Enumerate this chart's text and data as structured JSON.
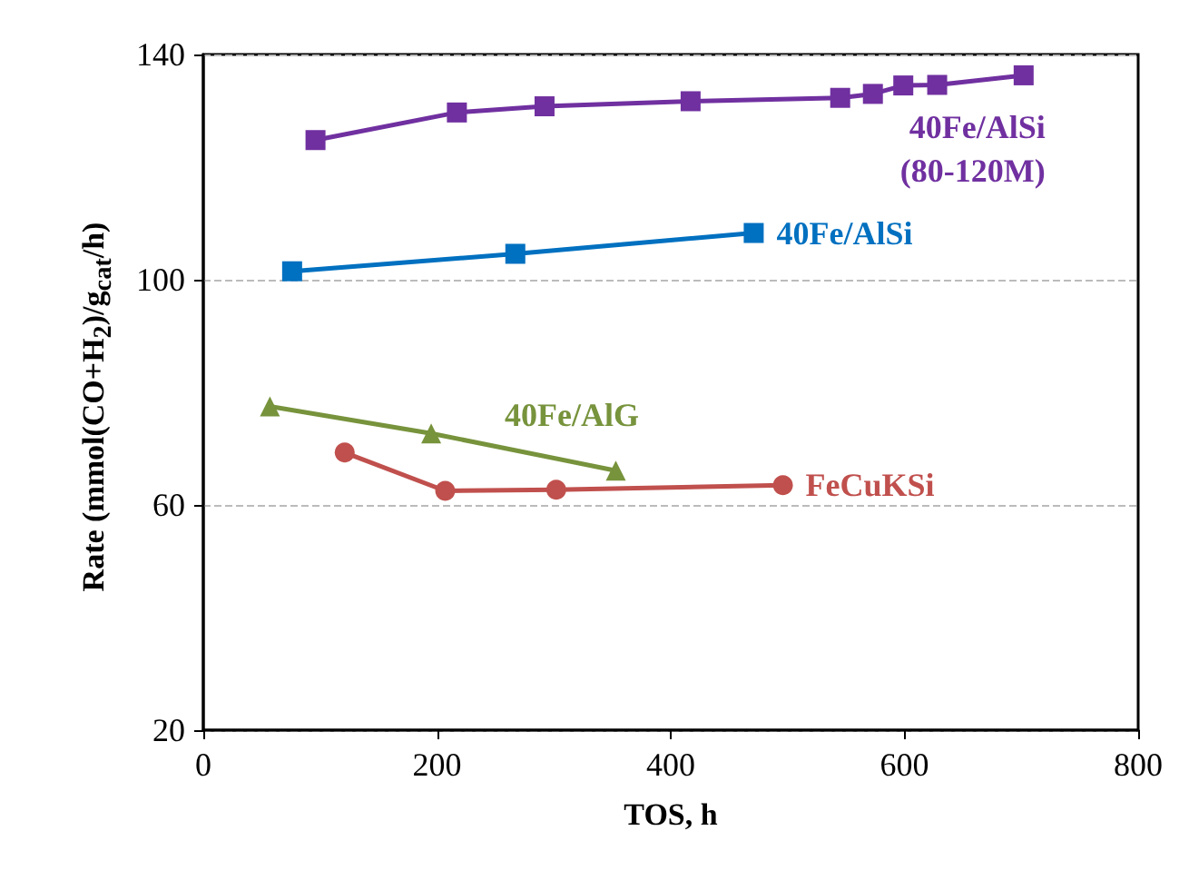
{
  "chart_data": {
    "type": "line",
    "xlabel": "TOS, h",
    "ylabel": "Rate (mmol(CO+H$_{2}$)/g$_{cat}$/h)",
    "xlim": [
      0,
      800
    ],
    "xticks": [
      0,
      200,
      400,
      600,
      800
    ],
    "ylim": [
      20,
      140
    ],
    "yticks": [
      20,
      60,
      100,
      140
    ],
    "grid": "y",
    "legend": false,
    "line_style": "solid",
    "series": [
      {
        "name": "40Fe/AlSi\n(80-120M)",
        "color": "#7030a0",
        "marker": "square",
        "x": [
          96,
          217,
          292,
          417,
          545,
          573,
          599,
          628,
          702
        ],
        "values": [
          124.8,
          129.7,
          130.8,
          131.7,
          132.3,
          133.0,
          134.5,
          134.6,
          136.3
        ]
      },
      {
        "name": "40Fe/AlSi",
        "color": "#0070c0",
        "marker": "square",
        "x": [
          76,
          267,
          471
        ],
        "values": [
          101.5,
          104.6,
          108.3
        ]
      },
      {
        "name": "40Fe/AlG",
        "color": "#77933c",
        "marker": "triangle",
        "x": [
          57,
          195,
          353
        ],
        "values": [
          77.5,
          72.7,
          66.1
        ]
      },
      {
        "name": "FeCuKSi",
        "color": "#c0504d",
        "marker": "circle",
        "x": [
          121,
          207,
          302,
          496
        ],
        "values": [
          69.3,
          62.5,
          62.7,
          63.5
        ]
      }
    ]
  }
}
